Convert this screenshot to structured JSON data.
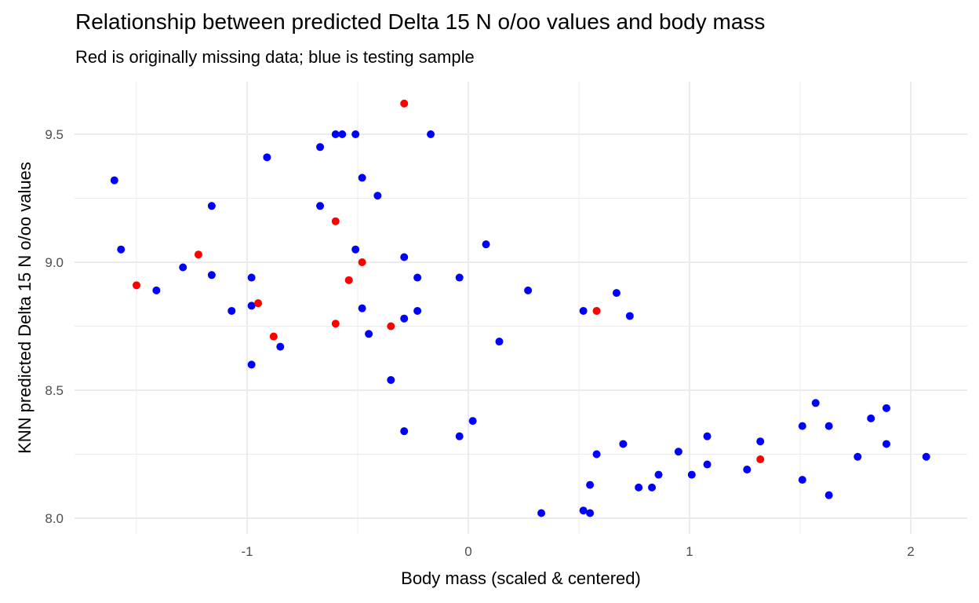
{
  "chart_data": {
    "type": "scatter",
    "title": "Relationship between predicted Delta 15 N o/oo values and body mass",
    "subtitle": "Red is originally missing data; blue is testing sample",
    "xlabel": "Body mass (scaled & centered)",
    "ylabel": "KNN predicted Delta 15 N o/oo values",
    "xlim": [
      -1.7,
      2.25
    ],
    "ylim": [
      7.94,
      9.69
    ],
    "x_major_ticks": [
      -1,
      0,
      1,
      2
    ],
    "x_tick_labels": [
      "-1",
      "0",
      "1",
      "2"
    ],
    "x_minor_ticks": [
      -1.5,
      -0.5,
      0.5,
      1.5
    ],
    "y_major_ticks": [
      8.0,
      8.5,
      9.0,
      9.5
    ],
    "y_tick_labels": [
      "8.0",
      "8.5",
      "9.0",
      "9.5"
    ],
    "y_minor_ticks": [
      8.25,
      8.75,
      9.25
    ],
    "grid": true,
    "legend": "none",
    "colors": {
      "missing": "#ff0000",
      "testing": "#0000ff",
      "grid": "#ebebeb"
    },
    "series": [
      {
        "name": "testing",
        "color": "#0000ff",
        "points": [
          [
            -1.6,
            9.32
          ],
          [
            -1.57,
            9.05
          ],
          [
            -1.41,
            8.89
          ],
          [
            -1.29,
            8.98
          ],
          [
            -1.16,
            9.22
          ],
          [
            -1.16,
            8.95
          ],
          [
            -1.07,
            8.81
          ],
          [
            -0.98,
            8.94
          ],
          [
            -0.98,
            8.83
          ],
          [
            -0.98,
            8.6
          ],
          [
            -0.91,
            9.41
          ],
          [
            -0.85,
            8.67
          ],
          [
            -0.67,
            9.45
          ],
          [
            -0.67,
            9.22
          ],
          [
            -0.6,
            9.5
          ],
          [
            -0.57,
            9.5
          ],
          [
            -0.51,
            9.5
          ],
          [
            -0.48,
            9.33
          ],
          [
            -0.41,
            9.26
          ],
          [
            -0.17,
            9.5
          ],
          [
            -0.51,
            9.05
          ],
          [
            -0.29,
            9.02
          ],
          [
            0.08,
            9.07
          ],
          [
            -0.23,
            8.94
          ],
          [
            -0.04,
            8.94
          ],
          [
            -0.48,
            8.82
          ],
          [
            -0.23,
            8.81
          ],
          [
            -0.29,
            8.78
          ],
          [
            -0.45,
            8.72
          ],
          [
            0.14,
            8.69
          ],
          [
            -0.35,
            8.54
          ],
          [
            0.02,
            8.38
          ],
          [
            -0.29,
            8.34
          ],
          [
            -0.04,
            8.32
          ],
          [
            0.27,
            8.89
          ],
          [
            0.52,
            8.81
          ],
          [
            0.67,
            8.88
          ],
          [
            0.73,
            8.79
          ],
          [
            0.33,
            8.02
          ],
          [
            0.52,
            8.03
          ],
          [
            0.55,
            8.02
          ],
          [
            0.55,
            8.13
          ],
          [
            0.58,
            8.25
          ],
          [
            0.7,
            8.29
          ],
          [
            0.77,
            8.12
          ],
          [
            0.83,
            8.12
          ],
          [
            0.86,
            8.17
          ],
          [
            0.95,
            8.26
          ],
          [
            1.01,
            8.17
          ],
          [
            1.08,
            8.21
          ],
          [
            1.08,
            8.32
          ],
          [
            1.26,
            8.19
          ],
          [
            1.32,
            8.3
          ],
          [
            1.51,
            8.36
          ],
          [
            1.51,
            8.15
          ],
          [
            1.57,
            8.45
          ],
          [
            1.63,
            8.36
          ],
          [
            1.63,
            8.09
          ],
          [
            1.76,
            8.24
          ],
          [
            1.82,
            8.39
          ],
          [
            1.89,
            8.43
          ],
          [
            1.89,
            8.29
          ],
          [
            2.07,
            8.24
          ]
        ]
      },
      {
        "name": "missing",
        "color": "#ff0000",
        "points": [
          [
            -1.5,
            8.91
          ],
          [
            -1.22,
            9.03
          ],
          [
            -0.95,
            8.84
          ],
          [
            -0.88,
            8.71
          ],
          [
            -0.6,
            9.16
          ],
          [
            -0.6,
            8.76
          ],
          [
            -0.54,
            8.93
          ],
          [
            -0.48,
            9.0
          ],
          [
            -0.35,
            8.75
          ],
          [
            -0.29,
            9.62
          ],
          [
            0.58,
            8.81
          ],
          [
            1.32,
            8.23
          ]
        ]
      }
    ]
  }
}
